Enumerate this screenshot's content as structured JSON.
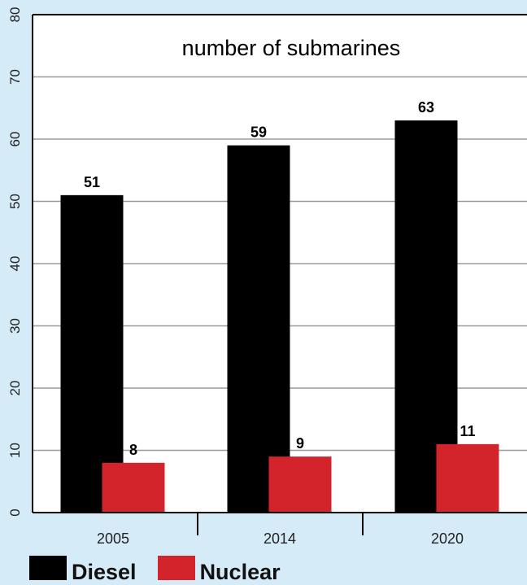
{
  "chart_data": {
    "type": "bar",
    "title": "number of submarines",
    "categories": [
      "2005",
      "2014",
      "2020"
    ],
    "series": [
      {
        "name": "Diesel",
        "values": [
          51,
          59,
          63
        ],
        "color": "#000000"
      },
      {
        "name": "Nuclear",
        "values": [
          8,
          9,
          11
        ],
        "color": "#d4242b"
      }
    ],
    "ylim": [
      0,
      80
    ],
    "yticks": [
      "0",
      "10",
      "20",
      "30",
      "40",
      "50",
      "60",
      "70",
      "80"
    ],
    "grid": true,
    "legend": "bottom-left"
  },
  "colors": {
    "background": "#d6ebf8",
    "plot_background": "#ffffff",
    "diesel": "#000000",
    "nuclear": "#d4242b",
    "gridline": "#9a9a9a"
  }
}
